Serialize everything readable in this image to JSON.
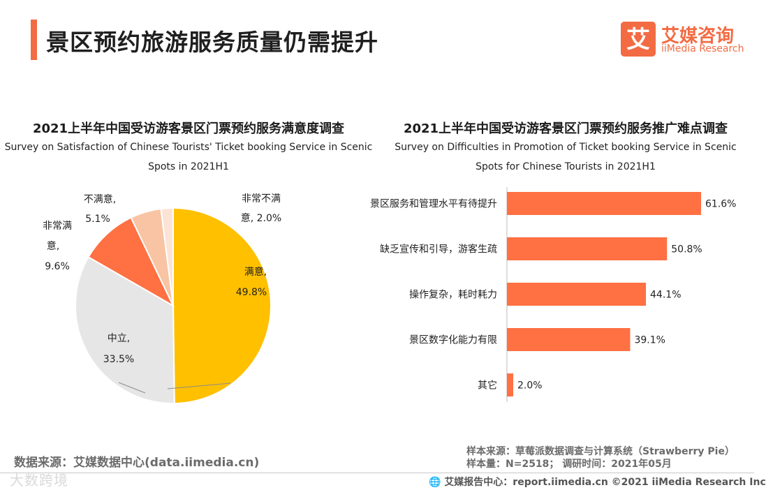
{
  "header": {
    "title": "景区预约旅游服务质量仍需提升",
    "logo_glyph": "艾",
    "logo_cn": "艾媒咨询",
    "logo_en": "iiMedia Research"
  },
  "colors": {
    "accent": "#f26b43",
    "satisfied": "#ffc000",
    "neutral": "#e6e6e6",
    "very_dissatisfied_outer": "#ff7043",
    "dissatisfied": "#f8c4a3",
    "very_dissatisfied": "#fbe3d6",
    "bar": "#ff7043"
  },
  "chart_data": [
    {
      "type": "pie",
      "title": "2021上半年中国受访游客景区门票预约服务满意度调查",
      "subtitle_line1": "Survey on Satisfaction of Chinese Tourists' Ticket booking Service in Scenic",
      "subtitle_line2": "Spots in 2021H1",
      "slices": [
        {
          "name": "满意,",
          "value": 49.8,
          "label": "49.8%",
          "color": "#ffc000"
        },
        {
          "name": "中立,",
          "value": 33.5,
          "label": "33.5%",
          "color": "#e6e6e6"
        },
        {
          "name": "非常满意,",
          "value": 9.6,
          "label": "9.6%",
          "color": "#ff7043"
        },
        {
          "name": "不满意,",
          "value": 5.1,
          "label": "5.1%",
          "color": "#f8c4a3"
        },
        {
          "name": "非常不满意,",
          "value": 2.0,
          "label": "2.0%",
          "color": "#fbe3d6"
        }
      ],
      "labels_text": {
        "satisfied": "满意,",
        "satisfied_pct": "49.8%",
        "neutral": "中立,",
        "neutral_pct": "33.5%",
        "very_satisfied_1": "非常满",
        "very_satisfied_2": "意,",
        "very_satisfied_pct": "9.6%",
        "dissatisfied": "不满意,",
        "dissatisfied_pct": "5.1%",
        "very_dissatisfied_1": "非常不满",
        "very_dissatisfied_2": "意, 2.0%"
      }
    },
    {
      "type": "bar",
      "orientation": "horizontal",
      "title": "2021上半年中国受访游客景区门票预约服务推广难点调查",
      "subtitle_line1": "Survey on Difficulties in Promotion of  Ticket booking  Service in Scenic",
      "subtitle_line2": "Spots for Chinese Tourists in 2021H1",
      "categories": [
        "景区服务和管理水平有待提升",
        "缺乏宣传和引导，游客生疏",
        "操作复杂，耗时耗力",
        "景区数字化能力有限",
        "其它"
      ],
      "values": [
        61.6,
        50.8,
        44.1,
        39.1,
        2.0
      ],
      "value_labels": [
        "61.6%",
        "50.8%",
        "44.1%",
        "39.1%",
        "2.0%"
      ],
      "unit": "%"
    }
  ],
  "footer": {
    "source_left": "数据来源：艾媒数据中心(data.iimedia.cn)",
    "sample_source": "样本来源：草莓派数据调查与计算系统（Strawberry Pie）",
    "sample_size": "样本量：N=2518；  调研时间：2021年05月",
    "report_center": "艾媒报告中心：report.iimedia.cn   ©2021  iiMedia Research  Inc",
    "watermark": "大数跨境"
  }
}
